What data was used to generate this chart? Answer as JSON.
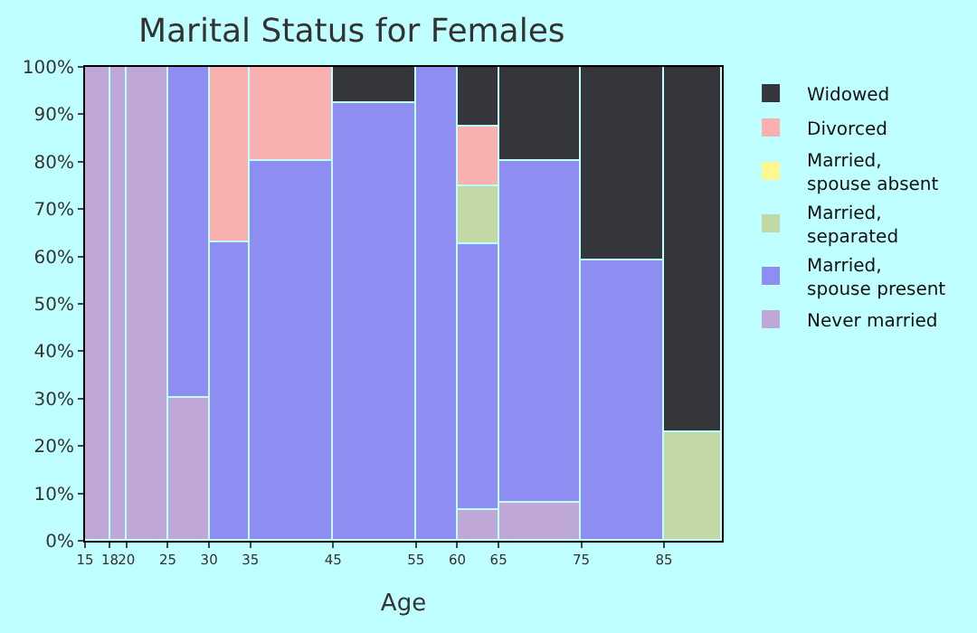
{
  "chart_data": {
    "type": "bar",
    "stacked": true,
    "title": "Marital Status for Females",
    "xlabel": "Age",
    "x": [
      16.5,
      19,
      22.5,
      27.5,
      32.5,
      40,
      50,
      57.5,
      62.5,
      70,
      80,
      88.5
    ],
    "xlim": [
      15,
      92
    ],
    "xticks": [
      15,
      18,
      20,
      25,
      30,
      35,
      45,
      55,
      60,
      65,
      75,
      85
    ],
    "ylim": [
      0,
      100
    ],
    "yticks": [
      {
        "value": 0,
        "label": "0%"
      },
      {
        "value": 10,
        "label": "10%"
      },
      {
        "value": 20,
        "label": "20%"
      },
      {
        "value": 30,
        "label": "30%"
      },
      {
        "value": 40,
        "label": "40%"
      },
      {
        "value": 50,
        "label": "50%"
      },
      {
        "value": 60,
        "label": "60%"
      },
      {
        "value": 70,
        "label": "70%"
      },
      {
        "value": 80,
        "label": "80%"
      },
      {
        "value": 90,
        "label": "90%"
      },
      {
        "value": 100,
        "label": "100%"
      }
    ],
    "legend": "right",
    "series": [
      {
        "name": "Never married",
        "color": "#bfa8d8",
        "values": [
          100,
          100,
          100,
          30,
          null,
          null,
          null,
          null,
          6.5,
          8,
          null,
          null
        ]
      },
      {
        "name": "Married,\nspouse present",
        "color": "#8e8ef2",
        "values": [
          null,
          null,
          null,
          70,
          63,
          80,
          92.5,
          100,
          56,
          72,
          59,
          null
        ]
      },
      {
        "name": "Married,\nseparated",
        "color": "#c2d9a5",
        "values": [
          null,
          null,
          null,
          null,
          null,
          null,
          null,
          null,
          12.5,
          null,
          null,
          23
        ]
      },
      {
        "name": "Married,\nspouse absent",
        "color": "#fff78f",
        "values": [
          null,
          null,
          null,
          null,
          null,
          null,
          null,
          null,
          null,
          null,
          null,
          null
        ]
      },
      {
        "name": "Divorced",
        "color": "#f8b0b0",
        "values": [
          null,
          null,
          null,
          null,
          37,
          20,
          null,
          null,
          12.5,
          null,
          null,
          null
        ]
      },
      {
        "name": "Widowed",
        "color": "#35363b",
        "values": [
          null,
          null,
          null,
          null,
          null,
          null,
          7.5,
          null,
          12.5,
          20,
          41,
          77
        ]
      }
    ]
  }
}
